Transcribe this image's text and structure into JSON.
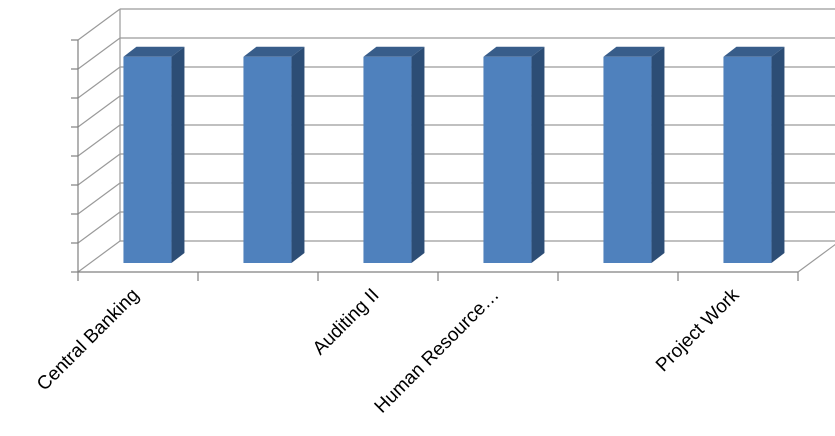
{
  "chart_data": {
    "type": "bar",
    "style": "3d-column",
    "categories": [
      "Central Banking",
      "",
      "Auditing II",
      "Human Resource…",
      "",
      "Project Work"
    ],
    "values": [
      1,
      1,
      1,
      1,
      1,
      1
    ],
    "ylim": [
      0,
      1.125
    ],
    "grid": true,
    "title": "",
    "xlabel": "",
    "ylabel": "",
    "colors": {
      "bar_front": "#4f81bd",
      "bar_side": "#2c4d75",
      "bar_top": "#385d8a",
      "grid": "#9a9a9a",
      "axis": "#808080"
    }
  }
}
